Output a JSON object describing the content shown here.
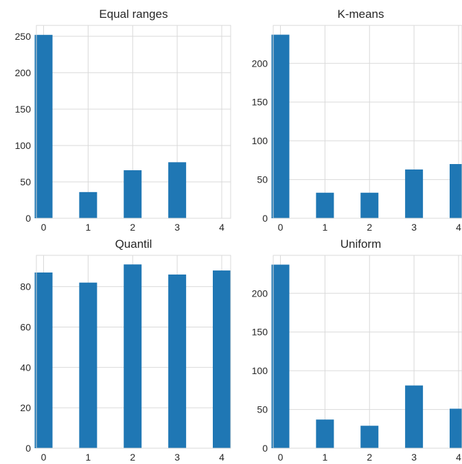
{
  "chart_data": [
    {
      "type": "bar",
      "title": "Equal ranges",
      "categories": [
        0,
        1,
        2,
        3,
        4
      ],
      "values": [
        252,
        36,
        66,
        77,
        0
      ],
      "ylim": [
        0,
        265
      ],
      "yticks": [
        0,
        50,
        100,
        150,
        200,
        250
      ],
      "xticks": [
        0,
        1,
        2,
        3,
        4
      ],
      "grid": true,
      "color": "#1f77b4"
    },
    {
      "type": "bar",
      "title": "K-means",
      "categories": [
        0,
        1,
        2,
        3,
        4
      ],
      "values": [
        237,
        33,
        33,
        63,
        70
      ],
      "ylim": [
        0,
        249
      ],
      "yticks": [
        0,
        50,
        100,
        150,
        200
      ],
      "xticks": [
        0,
        1,
        2,
        3,
        4
      ],
      "grid": true,
      "color": "#1f77b4"
    },
    {
      "type": "bar",
      "title": "Quantil",
      "categories": [
        0,
        1,
        2,
        3,
        4
      ],
      "values": [
        87,
        82,
        91,
        86,
        88
      ],
      "ylim": [
        0,
        95.5
      ],
      "yticks": [
        0,
        20,
        40,
        60,
        80
      ],
      "xticks": [
        0,
        1,
        2,
        3,
        4
      ],
      "grid": true,
      "color": "#1f77b4"
    },
    {
      "type": "bar",
      "title": "Uniform",
      "categories": [
        0,
        1,
        2,
        3,
        4
      ],
      "values": [
        237,
        37,
        29,
        81,
        51
      ],
      "ylim": [
        0,
        249
      ],
      "yticks": [
        0,
        50,
        100,
        150,
        200
      ],
      "xticks": [
        0,
        1,
        2,
        3,
        4
      ],
      "grid": true,
      "color": "#1f77b4"
    }
  ]
}
